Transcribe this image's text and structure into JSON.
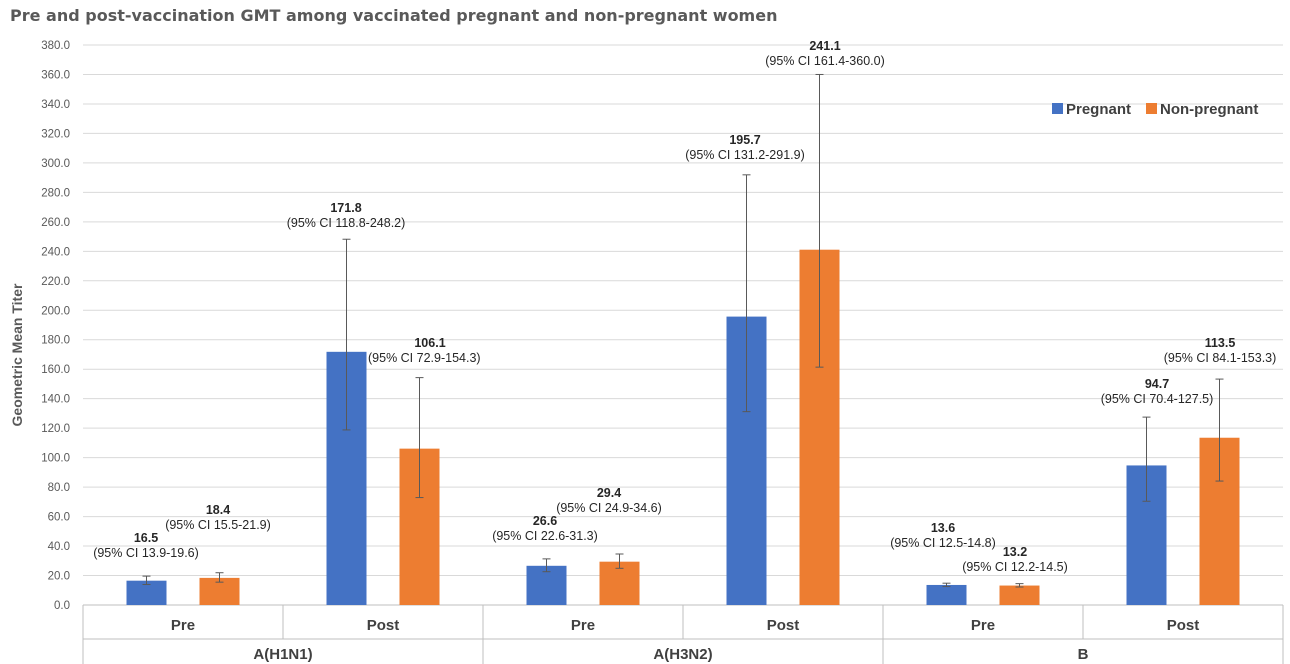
{
  "chart_data": {
    "type": "bar",
    "title": "Pre and post-vaccination GMT among vaccinated pregnant and non-pregnant women",
    "ylabel": "Geometric Mean Titer",
    "xlabel": "",
    "ylim": [
      0,
      380
    ],
    "ytick_step": 20,
    "ytick_labels": [
      "0.0",
      "20.0",
      "40.0",
      "60.0",
      "80.0",
      "100.0",
      "120.0",
      "140.0",
      "160.0",
      "180.0",
      "200.0",
      "220.0",
      "240.0",
      "260.0",
      "280.0",
      "300.0",
      "320.0",
      "340.0",
      "360.0",
      "380.0"
    ],
    "grid": true,
    "legend_position": "top-right",
    "groups": [
      "A(H1N1)",
      "A(H3N2)",
      "B"
    ],
    "categories": [
      "Pre",
      "Post",
      "Pre",
      "Post",
      "Pre",
      "Post"
    ],
    "series": [
      {
        "name": "Pregnant",
        "color": "#4472C4",
        "values": [
          16.5,
          171.8,
          26.6,
          195.7,
          13.6,
          94.7
        ],
        "ci_low": [
          13.9,
          118.8,
          22.6,
          131.2,
          12.5,
          70.4
        ],
        "ci_high": [
          19.6,
          248.2,
          31.3,
          291.9,
          14.8,
          127.5
        ],
        "value_labels": [
          "16.5",
          "171.8",
          "26.6",
          "195.7",
          "13.6",
          "94.7"
        ],
        "ci_labels": [
          "(95% CI 13.9-19.6)",
          "(95% CI 118.8-248.2)",
          "(95% CI 22.6-31.3)",
          "(95% CI 131.2-291.9)",
          "(95% CI 12.5-14.8)",
          "(95% CI 70.4-127.5)"
        ]
      },
      {
        "name": "Non-pregnant",
        "color": "#ED7D31",
        "values": [
          18.4,
          106.1,
          29.4,
          241.1,
          13.2,
          113.5
        ],
        "ci_low": [
          15.5,
          72.9,
          24.9,
          161.4,
          12.2,
          84.1
        ],
        "ci_high": [
          21.9,
          154.3,
          34.6,
          360.0,
          14.5,
          153.3
        ],
        "value_labels": [
          "18.4",
          "106.1",
          "29.4",
          "241.1",
          "13.2",
          "113.5"
        ],
        "ci_labels": [
          "(95% CI 15.5-21.9)",
          "(95% CI 72.9-154.3)",
          "(95% CI 24.9-34.6)",
          "(95% CI 161.4-360.0)",
          "(95% CI 12.2-14.5)",
          "(95% CI 84.1-153.3)"
        ]
      }
    ]
  }
}
